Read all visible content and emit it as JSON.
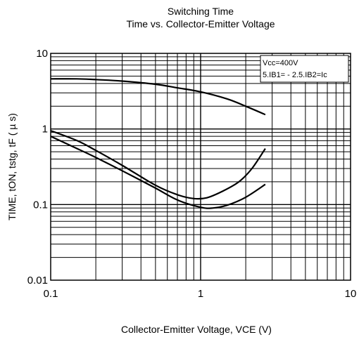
{
  "chart_data": {
    "type": "line",
    "title": "Switching Time",
    "subtitle": "Time vs. Collector-Emitter Voltage",
    "xlabel": "Collector-Emitter Voltage, VCE (V)",
    "ylabel": "TIME, tON, tstg, tF ( µ s)",
    "xscale": "log",
    "yscale": "log",
    "xlim": [
      0.1,
      10
    ],
    "ylim": [
      0.01,
      10
    ],
    "grid": true,
    "xticks": [
      {
        "value": 0.1,
        "label": "0.1"
      },
      {
        "value": 1,
        "label": "1"
      },
      {
        "value": 10,
        "label": "10"
      }
    ],
    "yticks": [
      {
        "value": 0.01,
        "label": "0.01"
      },
      {
        "value": 0.1,
        "label": "0.1"
      },
      {
        "value": 1,
        "label": "1"
      },
      {
        "value": 10,
        "label": "10"
      }
    ],
    "annotation": [
      "Vcc=400V",
      "5.IB1= - 2.5.IB2=Ic"
    ],
    "series": [
      {
        "x": [
          0.1,
          0.15,
          0.2,
          0.3,
          0.5,
          0.7,
          1.0,
          1.5,
          2.0,
          2.7
        ],
        "y": [
          4.6,
          4.6,
          4.5,
          4.3,
          3.9,
          3.5,
          3.1,
          2.5,
          2.0,
          1.55
        ]
      },
      {
        "x": [
          0.1,
          0.15,
          0.2,
          0.3,
          0.5,
          0.7,
          0.9,
          1.1,
          1.4,
          1.8,
          2.2,
          2.7
        ],
        "y": [
          0.95,
          0.7,
          0.52,
          0.33,
          0.18,
          0.135,
          0.12,
          0.123,
          0.15,
          0.2,
          0.3,
          0.55
        ]
      },
      {
        "x": [
          0.1,
          0.15,
          0.2,
          0.3,
          0.5,
          0.7,
          1.0,
          1.2,
          1.5,
          2.0,
          2.7
        ],
        "y": [
          0.8,
          0.55,
          0.42,
          0.28,
          0.165,
          0.115,
          0.092,
          0.09,
          0.098,
          0.125,
          0.185
        ]
      }
    ]
  }
}
